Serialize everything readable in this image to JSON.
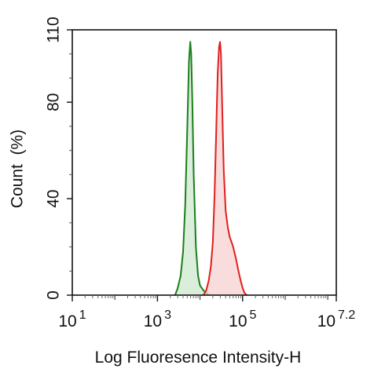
{
  "chart_data": {
    "type": "area",
    "title": "",
    "xlabel": "Log Fluoresence Intensity-H",
    "ylabel": "Count  (%)",
    "x_scale": "log",
    "xlim": [
      10,
      15848931.92
    ],
    "ylim": [
      0,
      110
    ],
    "grid": false,
    "legend": "none",
    "x_ticks": [
      {
        "value": 10,
        "base": "10",
        "exp": "1"
      },
      {
        "value": 1000,
        "base": "10",
        "exp": "3"
      },
      {
        "value": 100000,
        "base": "10",
        "exp": "5"
      },
      {
        "value": 15848931.92,
        "base": "10",
        "exp": "7.2"
      }
    ],
    "y_ticks": [
      0,
      40,
      80,
      110
    ],
    "series": [
      {
        "color": "#1a7f1a",
        "fill": "#cfe7cf",
        "x": [
          2600,
          3000,
          3500,
          4000,
          4500,
          5000,
          5500,
          5900,
          6200,
          6600,
          7100,
          8000,
          9000,
          10000,
          12000,
          14000,
          16000
        ],
        "values": [
          0,
          3,
          8,
          18,
          38,
          68,
          97,
          105,
          100,
          80,
          50,
          20,
          8,
          4,
          2,
          1,
          0
        ]
      },
      {
        "color": "#e01f1f",
        "fill": "#f7d0d0",
        "x": [
          12000,
          14000,
          16000,
          18000,
          20000,
          22000,
          24000,
          26000,
          28000,
          29500,
          31000,
          33000,
          36000,
          40000,
          45000,
          50000,
          55000,
          60000,
          70000,
          80000,
          90000,
          100000,
          110000,
          125000
        ],
        "values": [
          0,
          2,
          6,
          12,
          22,
          42,
          68,
          92,
          103,
          105,
          100,
          80,
          52,
          35,
          28,
          24,
          22,
          20,
          15,
          10,
          6,
          3,
          1,
          0
        ]
      }
    ]
  }
}
